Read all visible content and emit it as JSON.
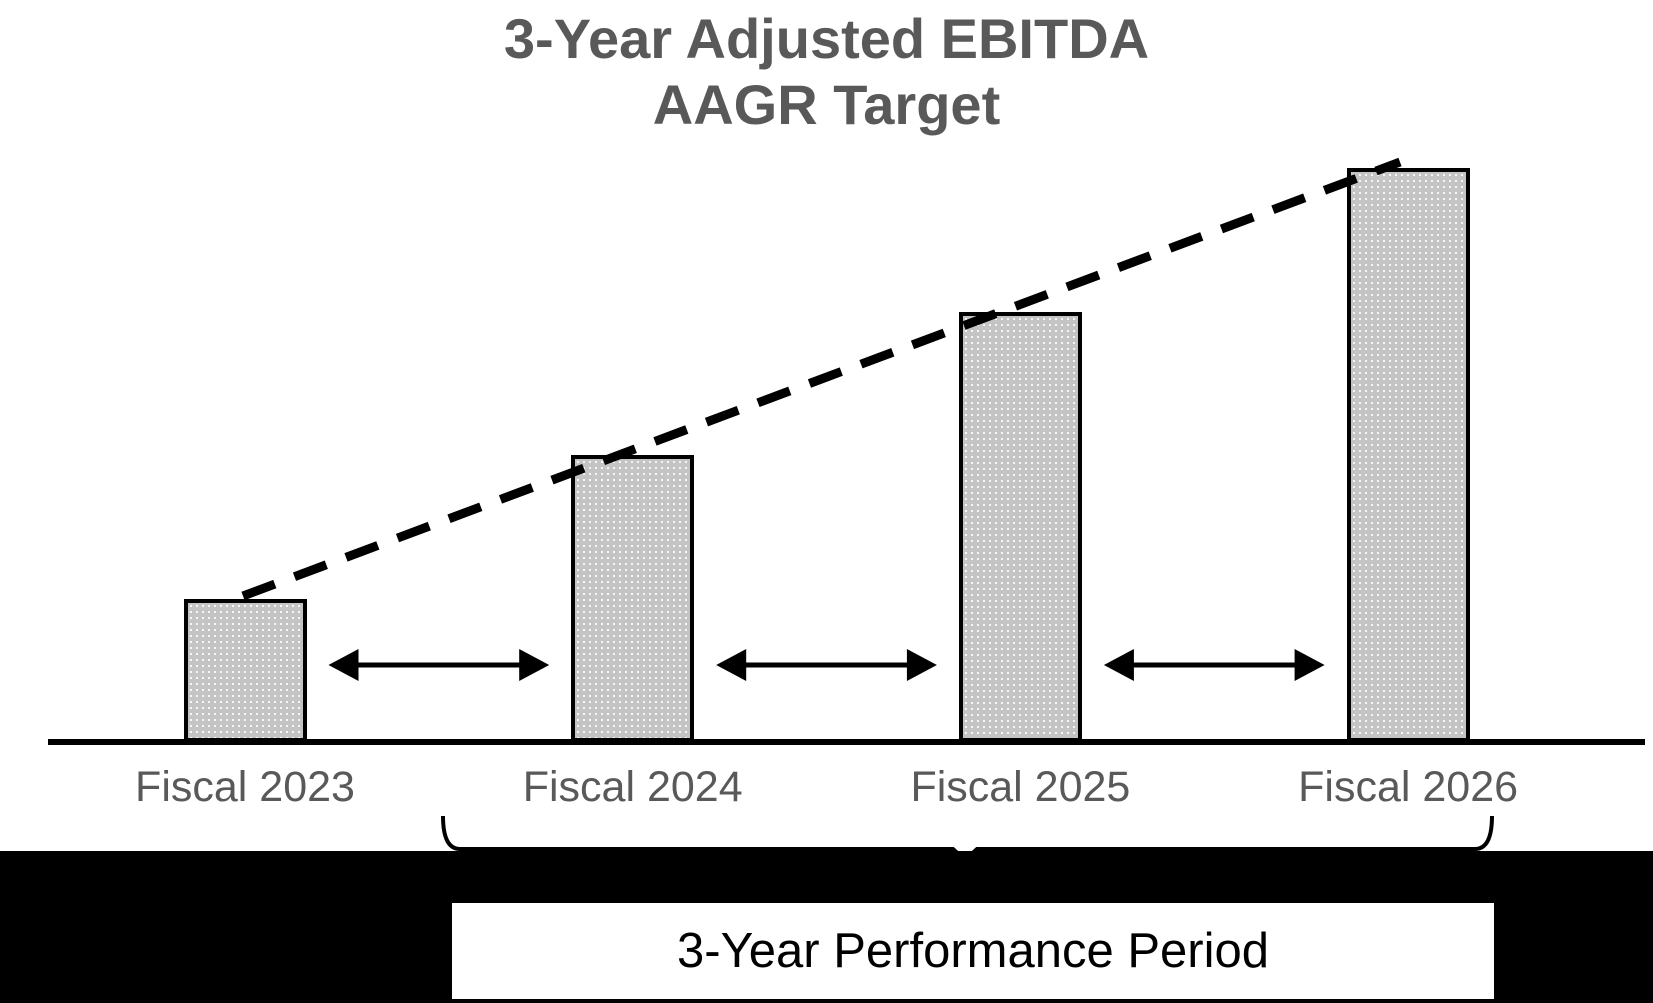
{
  "title": {
    "line1": "3-Year Adjusted EBITDA",
    "line2": "AAGR Target"
  },
  "footer": {
    "performance_period_label": "3-Year Performance Period"
  },
  "colors": {
    "title_text": "#595959",
    "axis_label_text": "#595959",
    "bar_fill": "#c4c4c4",
    "bar_border": "#000000",
    "trendline": "#000000",
    "arrow": "#000000",
    "band_background": "#000000",
    "period_box_background": "#ffffff",
    "period_box_text": "#000000"
  },
  "chart_data": {
    "type": "bar",
    "title": "3-Year Adjusted EBITDA AAGR Target",
    "categories": [
      "Fiscal 2023",
      "Fiscal 2024",
      "Fiscal 2025",
      "Fiscal 2026"
    ],
    "values_relative": [
      1,
      2,
      3,
      4
    ],
    "xlabel": "",
    "ylabel": "",
    "value_axis_shown": false,
    "grid": false,
    "legend": false,
    "trendline": {
      "style": "dashed",
      "color": "#000000",
      "description": "Straight dashed AAGR target line rising from the top of the Fiscal 2023 bar to the top of the Fiscal 2026 bar"
    },
    "gap_arrows": {
      "count": 3,
      "description": "Horizontal double-headed arrows between each pair of adjacent bars (2023-2024, 2024-2025, 2025-2026)"
    },
    "annotation": {
      "bracket_span": "Fiscal 2024 through Fiscal 2026",
      "label": "3-Year Performance Period"
    }
  }
}
